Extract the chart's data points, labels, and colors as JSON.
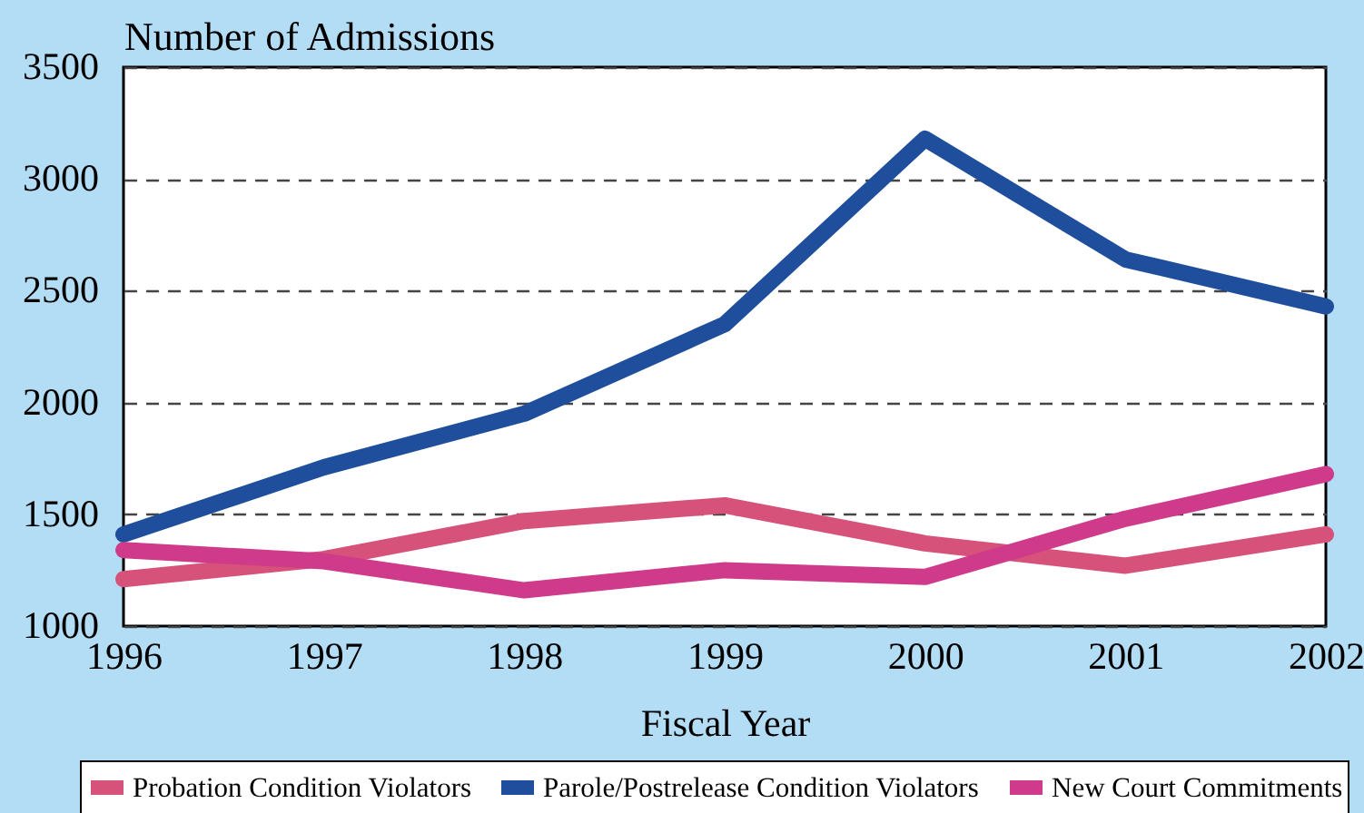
{
  "chart_data": {
    "type": "line",
    "ylabel": "Number of Admissions",
    "xlabel": "Fiscal Year",
    "x": [
      1996,
      1997,
      1998,
      1999,
      2000,
      2001,
      2002
    ],
    "series": [
      {
        "name": "Probation Condition Violators",
        "color": "#d6527a",
        "values": [
          1210,
          1300,
          1470,
          1540,
          1370,
          1270,
          1410
        ]
      },
      {
        "name": "Parole/Postrelease Condition Violators",
        "color": "#1f4f9c",
        "values": [
          1410,
          1710,
          1950,
          2350,
          3180,
          2640,
          2430
        ]
      },
      {
        "name": "New Court Commitments",
        "color": "#cf3a8a",
        "values": [
          1340,
          1290,
          1160,
          1250,
          1220,
          1480,
          1680
        ]
      }
    ],
    "xlim": [
      1996,
      2002
    ],
    "xticks": [
      1996,
      1997,
      1998,
      1999,
      2000,
      2001,
      2002
    ],
    "ylim": [
      1000,
      3500
    ],
    "yticks": [
      1000,
      1500,
      2000,
      2500,
      3000,
      3500
    ],
    "grid": "y",
    "legend": "bottom",
    "line_style": "solid"
  }
}
